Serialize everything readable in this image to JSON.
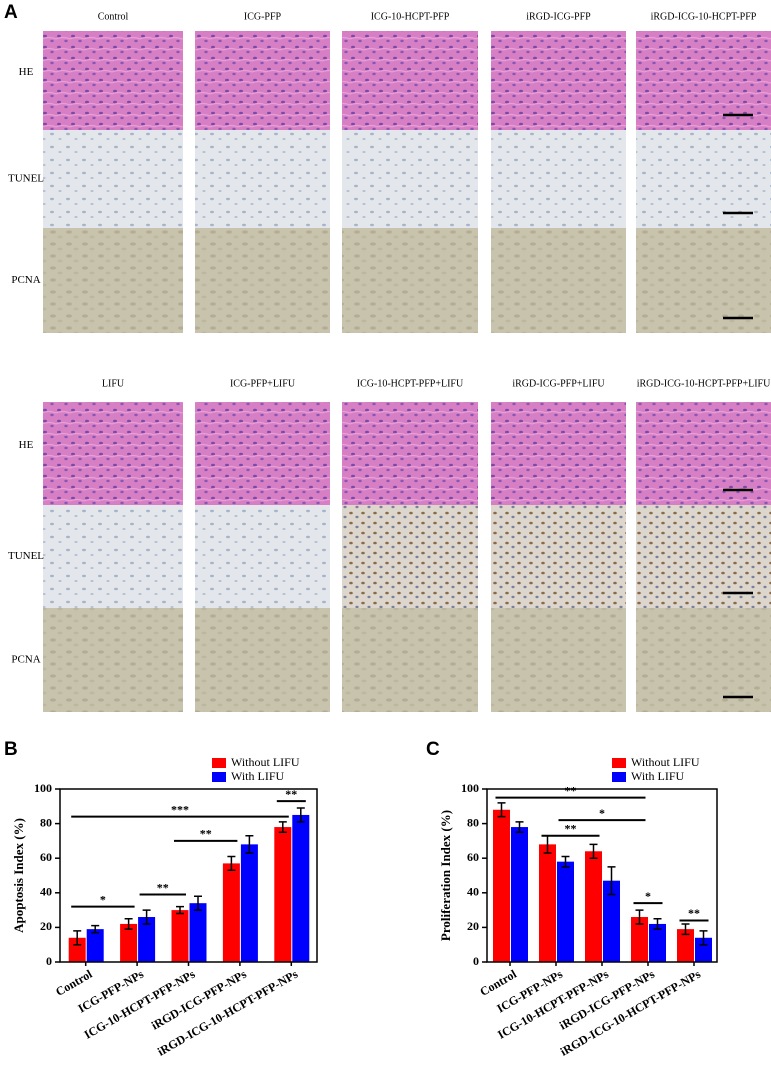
{
  "panel_a": {
    "label": "A",
    "rows": [
      "HE",
      "TUNEL",
      "PCNA"
    ],
    "groups": [
      {
        "columns": [
          "Control",
          "ICG-PFP",
          "ICG-10-HCPT-PFP",
          "iRGD-ICG-PFP",
          "iRGD-ICG-10-HCPT-PFP"
        ]
      },
      {
        "columns": [
          "LIFU",
          "ICG-PFP+LIFU",
          "ICG-10-HCPT-PFP+LIFU",
          "iRGD-ICG-PFP+LIFU",
          "iRGD-ICG-10-HCPT-PFP+LIFU"
        ]
      }
    ]
  },
  "chart_data": [
    {
      "type": "bar",
      "panel": "B",
      "ylabel": "Apoptosis Index (%)",
      "categories": [
        "Control",
        "ICG-PFP-NPs",
        "ICG-10-HCPT-PFP-NPs",
        "iRGD-ICG-PFP-NPs",
        "iRGD-ICG-10-HCPT-PFP-NPs"
      ],
      "series": [
        {
          "name": "Without LIFU",
          "color": "#ff0000",
          "values": [
            14,
            22,
            30,
            57,
            78
          ],
          "errors": [
            4,
            3,
            2,
            4,
            3
          ]
        },
        {
          "name": "With LIFU",
          "color": "#0000ff",
          "values": [
            19,
            26,
            34,
            68,
            85
          ],
          "errors": [
            2,
            4,
            4,
            5,
            4
          ]
        }
      ],
      "ylim": [
        0,
        100
      ],
      "yticks": [
        0,
        20,
        40,
        60,
        80,
        100
      ],
      "legend": "top-right",
      "annotations": [
        "*",
        "**",
        "**",
        "***",
        "**"
      ]
    },
    {
      "type": "bar",
      "panel": "C",
      "ylabel": "Proliferation Index (%)",
      "categories": [
        "Control",
        "ICG-PFP-NPs",
        "ICG-10-HCPT-PFP-NPs",
        "iRGD-ICG-PFP-NPs",
        "iRGD-ICG-10-HCPT-PFP-NPs"
      ],
      "series": [
        {
          "name": "Without LIFU",
          "color": "#ff0000",
          "values": [
            88,
            68,
            64,
            26,
            19
          ],
          "errors": [
            4,
            5,
            4,
            4,
            3
          ]
        },
        {
          "name": "With LIFU",
          "color": "#0000ff",
          "values": [
            78,
            58,
            47,
            22,
            14
          ],
          "errors": [
            3,
            3,
            8,
            3,
            4
          ]
        }
      ],
      "ylim": [
        0,
        100
      ],
      "yticks": [
        0,
        20,
        40,
        60,
        80,
        100
      ],
      "legend": "top-right",
      "annotations": [
        "**",
        "*",
        "**",
        "*",
        "**"
      ]
    }
  ]
}
